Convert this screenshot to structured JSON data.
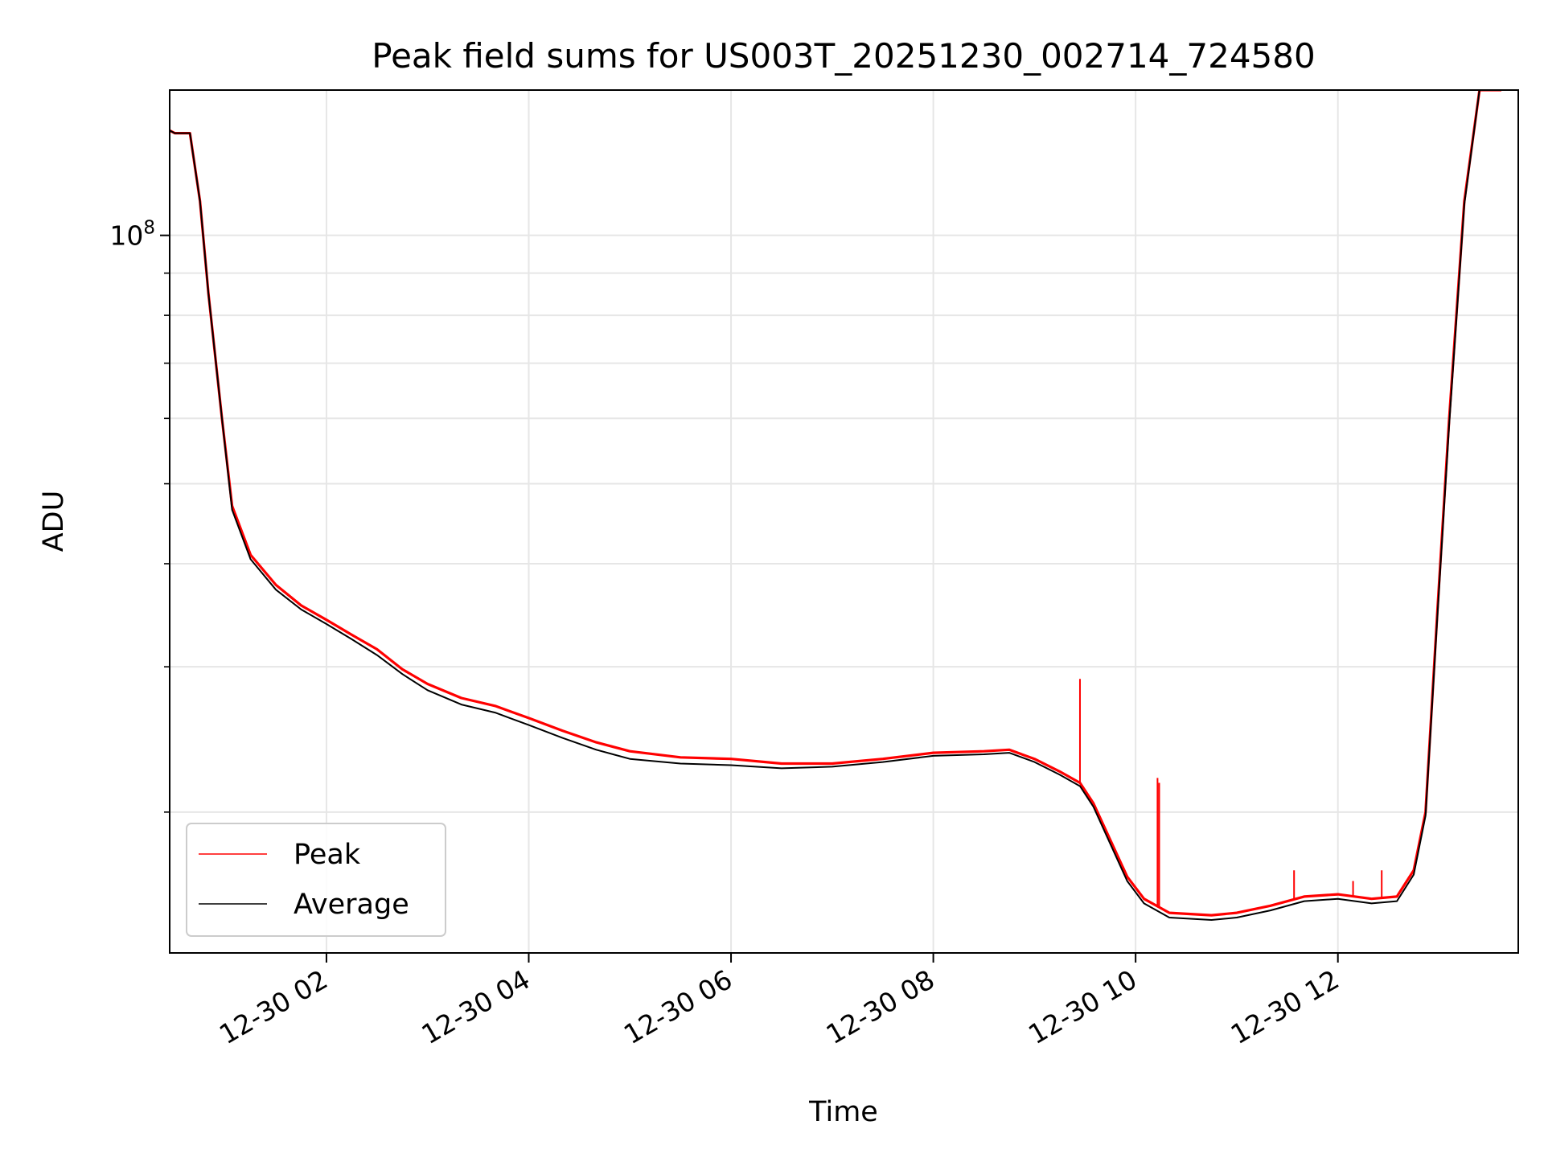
{
  "chart_data": {
    "type": "line",
    "title": "Peak field sums for US003T_20251230_002714_724580",
    "xlabel": "Time",
    "ylabel": "ADU",
    "x_scale": "time",
    "y_scale": "log",
    "xlim": [
      "2025-12-30 00:27",
      "2025-12-30 13:47"
    ],
    "ylim": [
      13500000,
      150000000
    ],
    "x_ticks": [
      {
        "t": "2025-12-30 02:00",
        "label": "12-30 02"
      },
      {
        "t": "2025-12-30 04:00",
        "label": "12-30 04"
      },
      {
        "t": "2025-12-30 06:00",
        "label": "12-30 06"
      },
      {
        "t": "2025-12-30 08:00",
        "label": "12-30 08"
      },
      {
        "t": "2025-12-30 10:00",
        "label": "12-30 10"
      },
      {
        "t": "2025-12-30 12:00",
        "label": "12-30 12"
      }
    ],
    "y_major_ticks": [
      {
        "value": 100000000,
        "label_base": "10",
        "label_exp": "8"
      }
    ],
    "y_minor_ticks": [
      20000000,
      30000000,
      40000000,
      50000000,
      60000000,
      70000000,
      80000000,
      90000000
    ],
    "grid": true,
    "legend_position": "lower-left",
    "series": [
      {
        "name": "Peak",
        "color": "#ff0000",
        "points": [
          [
            "2025-12-30 00:27",
            134000000
          ],
          [
            "2025-12-30 00:30",
            133000000
          ],
          [
            "2025-12-30 00:39",
            133000000
          ],
          [
            "2025-12-30 00:45",
            110000000
          ],
          [
            "2025-12-30 00:50",
            85000000
          ],
          [
            "2025-12-30 00:58",
            60000000
          ],
          [
            "2025-12-30 01:04",
            47000000
          ],
          [
            "2025-12-30 01:15",
            41000000
          ],
          [
            "2025-12-30 01:30",
            37700000
          ],
          [
            "2025-12-30 01:45",
            35600000
          ],
          [
            "2025-12-30 02:00",
            34200000
          ],
          [
            "2025-12-30 02:15",
            32800000
          ],
          [
            "2025-12-30 02:30",
            31500000
          ],
          [
            "2025-12-30 02:45",
            29800000
          ],
          [
            "2025-12-30 03:00",
            28600000
          ],
          [
            "2025-12-30 03:20",
            27500000
          ],
          [
            "2025-12-30 03:40",
            26900000
          ],
          [
            "2025-12-30 04:00",
            26000000
          ],
          [
            "2025-12-30 04:20",
            25100000
          ],
          [
            "2025-12-30 04:40",
            24300000
          ],
          [
            "2025-12-30 05:00",
            23700000
          ],
          [
            "2025-12-30 05:30",
            23300000
          ],
          [
            "2025-12-30 06:00",
            23200000
          ],
          [
            "2025-12-30 06:30",
            22900000
          ],
          [
            "2025-12-30 07:00",
            22900000
          ],
          [
            "2025-12-30 07:30",
            23200000
          ],
          [
            "2025-12-30 08:00",
            23600000
          ],
          [
            "2025-12-30 08:30",
            23700000
          ],
          [
            "2025-12-30 08:45",
            23800000
          ],
          [
            "2025-12-30 09:00",
            23200000
          ],
          [
            "2025-12-30 09:15",
            22400000
          ],
          [
            "2025-12-30 09:27",
            21700000
          ],
          [
            "2025-12-30 09:35",
            20500000
          ],
          [
            "2025-12-30 09:45",
            18500000
          ],
          [
            "2025-12-30 09:55",
            16700000
          ],
          [
            "2025-12-30 10:05",
            15700000
          ],
          [
            "2025-12-30 10:20",
            15100000
          ],
          [
            "2025-12-30 10:45",
            15000000
          ],
          [
            "2025-12-30 11:00",
            15100000
          ],
          [
            "2025-12-30 11:20",
            15400000
          ],
          [
            "2025-12-30 11:40",
            15800000
          ],
          [
            "2025-12-30 12:00",
            15900000
          ],
          [
            "2025-12-30 12:20",
            15700000
          ],
          [
            "2025-12-30 12:35",
            15800000
          ],
          [
            "2025-12-30 12:45",
            17000000
          ],
          [
            "2025-12-30 12:52",
            20000000
          ],
          [
            "2025-12-30 12:59",
            35000000
          ],
          [
            "2025-12-30 13:06",
            60000000
          ],
          [
            "2025-12-30 13:15",
            110000000
          ],
          [
            "2025-12-30 13:24",
            150000000
          ],
          [
            "2025-12-30 13:37",
            150000000
          ]
        ],
        "spikes": [
          [
            "2025-12-30 09:27",
            29000000
          ],
          [
            "2025-12-30 10:13",
            22000000
          ],
          [
            "2025-12-30 10:14",
            21700000
          ],
          [
            "2025-12-30 11:34",
            17000000
          ],
          [
            "2025-12-30 12:09",
            16500000
          ],
          [
            "2025-12-30 12:26",
            17000000
          ]
        ]
      },
      {
        "name": "Average",
        "color": "#000000",
        "points": [
          [
            "2025-12-30 00:27",
            134000000
          ],
          [
            "2025-12-30 00:30",
            133000000
          ],
          [
            "2025-12-30 00:39",
            133000000
          ],
          [
            "2025-12-30 00:45",
            110000000
          ],
          [
            "2025-12-30 00:50",
            85000000
          ],
          [
            "2025-12-30 00:58",
            60000000
          ],
          [
            "2025-12-30 01:04",
            46500000
          ],
          [
            "2025-12-30 01:15",
            40500000
          ],
          [
            "2025-12-30 01:30",
            37200000
          ],
          [
            "2025-12-30 01:45",
            35200000
          ],
          [
            "2025-12-30 02:00",
            33800000
          ],
          [
            "2025-12-30 02:15",
            32400000
          ],
          [
            "2025-12-30 02:30",
            31000000
          ],
          [
            "2025-12-30 02:45",
            29400000
          ],
          [
            "2025-12-30 03:00",
            28100000
          ],
          [
            "2025-12-30 03:20",
            27000000
          ],
          [
            "2025-12-30 03:40",
            26400000
          ],
          [
            "2025-12-30 04:00",
            25500000
          ],
          [
            "2025-12-30 04:20",
            24600000
          ],
          [
            "2025-12-30 04:40",
            23800000
          ],
          [
            "2025-12-30 05:00",
            23200000
          ],
          [
            "2025-12-30 05:30",
            22900000
          ],
          [
            "2025-12-30 06:00",
            22800000
          ],
          [
            "2025-12-30 06:30",
            22600000
          ],
          [
            "2025-12-30 07:00",
            22700000
          ],
          [
            "2025-12-30 07:30",
            23000000
          ],
          [
            "2025-12-30 08:00",
            23400000
          ],
          [
            "2025-12-30 08:30",
            23500000
          ],
          [
            "2025-12-30 08:45",
            23600000
          ],
          [
            "2025-12-30 09:00",
            23000000
          ],
          [
            "2025-12-30 09:15",
            22200000
          ],
          [
            "2025-12-30 09:27",
            21500000
          ],
          [
            "2025-12-30 09:35",
            20300000
          ],
          [
            "2025-12-30 09:45",
            18300000
          ],
          [
            "2025-12-30 09:55",
            16500000
          ],
          [
            "2025-12-30 10:05",
            15500000
          ],
          [
            "2025-12-30 10:20",
            14900000
          ],
          [
            "2025-12-30 10:45",
            14800000
          ],
          [
            "2025-12-30 11:00",
            14900000
          ],
          [
            "2025-12-30 11:20",
            15200000
          ],
          [
            "2025-12-30 11:40",
            15600000
          ],
          [
            "2025-12-30 12:00",
            15700000
          ],
          [
            "2025-12-30 12:20",
            15500000
          ],
          [
            "2025-12-30 12:35",
            15600000
          ],
          [
            "2025-12-30 12:45",
            16800000
          ],
          [
            "2025-12-30 12:52",
            19800000
          ],
          [
            "2025-12-30 12:59",
            34500000
          ],
          [
            "2025-12-30 13:06",
            59000000
          ],
          [
            "2025-12-30 13:15",
            109000000
          ],
          [
            "2025-12-30 13:24",
            150000000
          ],
          [
            "2025-12-30 13:37",
            150000000
          ]
        ]
      }
    ]
  }
}
